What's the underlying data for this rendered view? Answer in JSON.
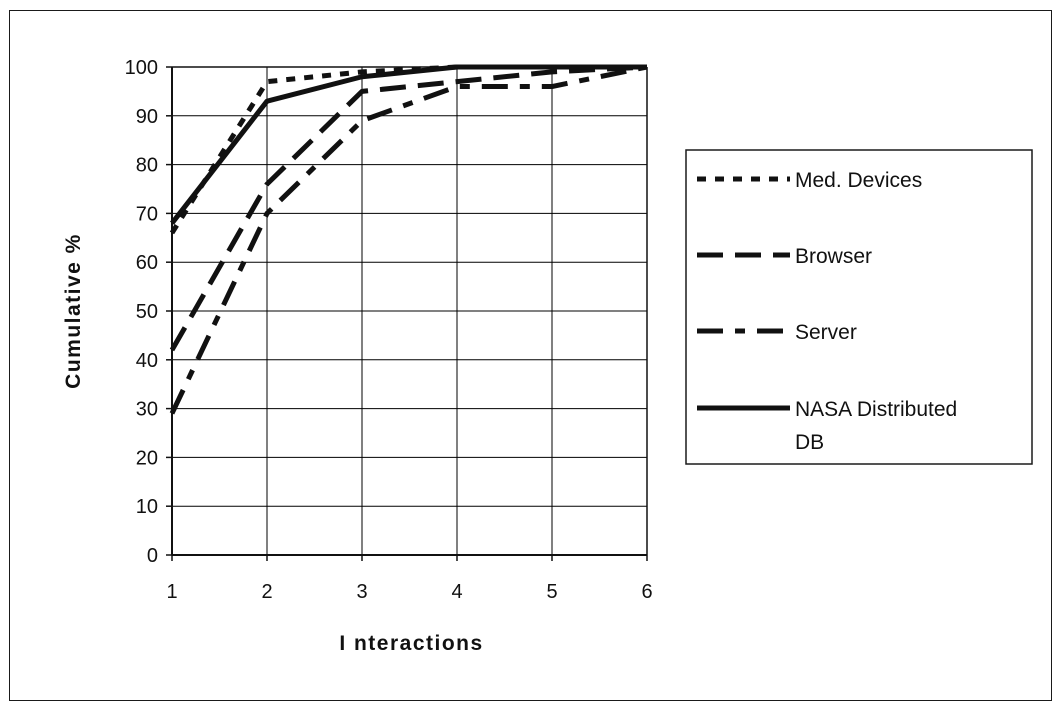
{
  "chart_data": {
    "type": "line",
    "title": "",
    "xlabel": "I nteractions",
    "ylabel": "Cumulative %",
    "x": [
      1,
      2,
      3,
      4,
      5,
      6
    ],
    "x_ticks": [
      "1",
      "2",
      "3",
      "4",
      "5",
      "6"
    ],
    "y_ticks": [
      "0",
      "10",
      "20",
      "30",
      "40",
      "50",
      "60",
      "70",
      "80",
      "90",
      "100"
    ],
    "xlim": [
      1,
      6
    ],
    "ylim": [
      0,
      100
    ],
    "grid": true,
    "legend_position": "right",
    "series": [
      {
        "name": "Med. Devices",
        "style": "dotted",
        "values": [
          66,
          97,
          99,
          100,
          100,
          100
        ]
      },
      {
        "name": "Browser",
        "style": "long-dash",
        "values": [
          42,
          76,
          95,
          97,
          99,
          100
        ]
      },
      {
        "name": "Server",
        "style": "dash-dot",
        "values": [
          29,
          70,
          89,
          96,
          96,
          100
        ]
      },
      {
        "name": "NASA Distributed DB",
        "style": "solid",
        "values": [
          68,
          93,
          98,
          100,
          100,
          100
        ]
      }
    ],
    "colors": {
      "line": "#111111",
      "grid": "#000000",
      "frame": "#1a1a1a"
    }
  }
}
